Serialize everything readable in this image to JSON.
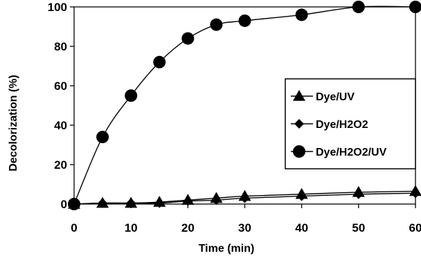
{
  "chart_data": {
    "type": "line",
    "xlabel": "Time (min)",
    "ylabel": "Decolorization (%)",
    "xlim": [
      0,
      60
    ],
    "ylim": [
      0,
      100
    ],
    "x_ticks": [
      "0",
      "10",
      "20",
      "30",
      "40",
      "50",
      "60"
    ],
    "y_ticks": [
      "0",
      "20",
      "40",
      "60",
      "80",
      "100"
    ],
    "grid": false,
    "legend_position": "right",
    "x": [
      0,
      5,
      10,
      15,
      20,
      25,
      30,
      40,
      50,
      60
    ],
    "series": [
      {
        "name": "Dye/UV",
        "marker": "triangle",
        "values": [
          0,
          0.5,
          0.5,
          1,
          2,
          3,
          4,
          5,
          6,
          6.5
        ]
      },
      {
        "name": "Dye/H2O2",
        "marker": "diamond",
        "values": [
          0,
          0.5,
          0.5,
          0.5,
          1.5,
          2,
          3,
          4,
          5,
          5.5
        ]
      },
      {
        "name": "Dye/H2O2/UV",
        "marker": "circle",
        "values": [
          0,
          34,
          55,
          72,
          84,
          91,
          93,
          96,
          100,
          100
        ]
      }
    ],
    "color": "#000000"
  }
}
